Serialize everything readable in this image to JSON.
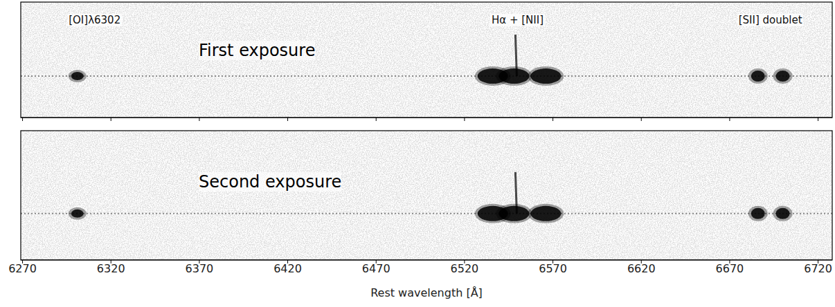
{
  "chart_data": {
    "type": "spectrum_2d",
    "xlabel": "Rest wavelength [Å]",
    "xlim": [
      6269,
      6728
    ],
    "xticks": [
      6270,
      6320,
      6370,
      6420,
      6470,
      6520,
      6570,
      6620,
      6670,
      6720
    ],
    "tick_labels": "x",
    "color": "#000000",
    "panels": [
      {
        "title": "First exposure"
      },
      {
        "title": "Second exposure"
      }
    ],
    "lines": [
      {
        "label": "[OI]λ6302",
        "wavelengths": [
          6301
        ]
      },
      {
        "label": "Hα + [NII]",
        "wavelengths": [
          6536,
          6548,
          6566
        ]
      },
      {
        "label": "[SII] doublet",
        "wavelengths": [
          6686,
          6700
        ]
      }
    ]
  }
}
